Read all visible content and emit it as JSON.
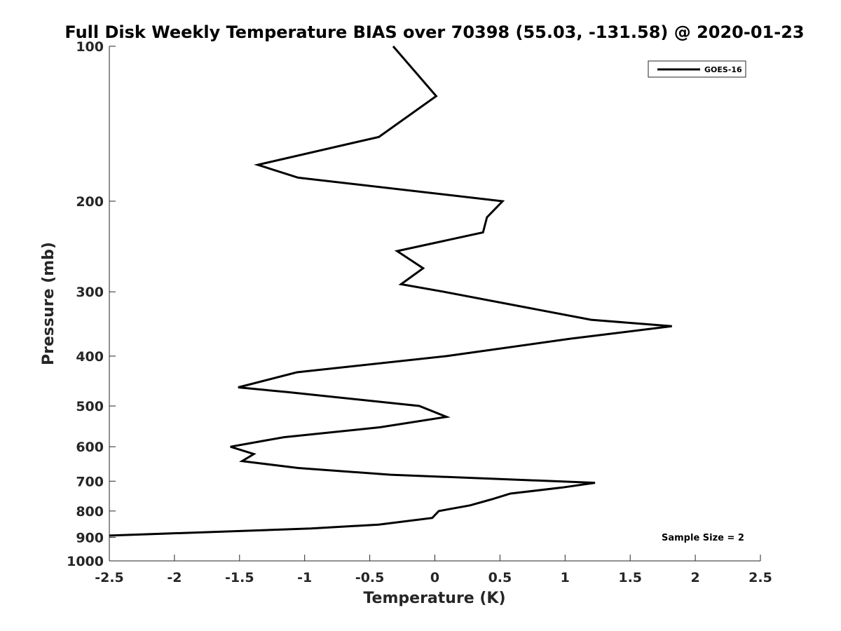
{
  "chart_data": {
    "type": "line",
    "title": "Full Disk Weekly Temperature BIAS over 70398 (55.03, -131.58) @ 2020-01-23",
    "xlabel": "Temperature (K)",
    "ylabel": "Pressure (mb)",
    "xlim": [
      -2.5,
      2.5
    ],
    "ylim": [
      100,
      1000
    ],
    "y_scale": "log",
    "y_reversed": true,
    "x_ticks": [
      -2.5,
      -2,
      -1.5,
      -1,
      -0.5,
      0,
      0.5,
      1,
      1.5,
      2,
      2.5
    ],
    "x_tick_labels": [
      "-2.5",
      "-2",
      "-1.5",
      "-1",
      "-0.5",
      "0",
      "0.5",
      "1",
      "1.5",
      "2",
      "2.5"
    ],
    "y_ticks": [
      100,
      200,
      300,
      400,
      500,
      600,
      700,
      800,
      900,
      1000
    ],
    "y_tick_labels": [
      "100",
      "200",
      "300",
      "400",
      "500",
      "600",
      "700",
      "800",
      "900",
      "1000"
    ],
    "grid": false,
    "legend_position": "top-right",
    "series": [
      {
        "name": "GOES-16",
        "color": "#000000",
        "points": [
          {
            "x": -0.32,
            "y": 100
          },
          {
            "x": 0.01,
            "y": 125
          },
          {
            "x": -0.43,
            "y": 150
          },
          {
            "x": -1.36,
            "y": 170
          },
          {
            "x": -1.05,
            "y": 180
          },
          {
            "x": 0.52,
            "y": 200
          },
          {
            "x": 0.4,
            "y": 215
          },
          {
            "x": 0.37,
            "y": 230
          },
          {
            "x": -0.29,
            "y": 250
          },
          {
            "x": -0.09,
            "y": 270
          },
          {
            "x": -0.26,
            "y": 290
          },
          {
            "x": 0.07,
            "y": 300
          },
          {
            "x": 1.2,
            "y": 340
          },
          {
            "x": 1.82,
            "y": 350
          },
          {
            "x": 1.04,
            "y": 370
          },
          {
            "x": 0.09,
            "y": 400
          },
          {
            "x": -1.06,
            "y": 430
          },
          {
            "x": -1.51,
            "y": 460
          },
          {
            "x": -1.13,
            "y": 470
          },
          {
            "x": -0.12,
            "y": 500
          },
          {
            "x": 0.09,
            "y": 525
          },
          {
            "x": -0.42,
            "y": 550
          },
          {
            "x": -1.16,
            "y": 575
          },
          {
            "x": -1.57,
            "y": 600
          },
          {
            "x": -1.39,
            "y": 620
          },
          {
            "x": -1.48,
            "y": 640
          },
          {
            "x": -1.05,
            "y": 660
          },
          {
            "x": -0.34,
            "y": 680
          },
          {
            "x": 1.23,
            "y": 705
          },
          {
            "x": 0.98,
            "y": 720
          },
          {
            "x": 0.58,
            "y": 740
          },
          {
            "x": 0.43,
            "y": 760
          },
          {
            "x": 0.27,
            "y": 780
          },
          {
            "x": 0.03,
            "y": 800
          },
          {
            "x": -0.02,
            "y": 825
          },
          {
            "x": -0.43,
            "y": 850
          },
          {
            "x": -0.95,
            "y": 865
          },
          {
            "x": -2.5,
            "y": 893
          }
        ]
      }
    ],
    "annotations": [
      "Sample Size = 2"
    ]
  }
}
